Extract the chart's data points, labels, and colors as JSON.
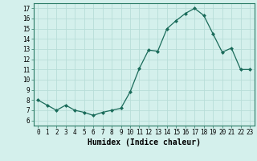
{
  "x": [
    0,
    1,
    2,
    3,
    4,
    5,
    6,
    7,
    8,
    9,
    10,
    11,
    12,
    13,
    14,
    15,
    16,
    17,
    18,
    19,
    20,
    21,
    22,
    23
  ],
  "y": [
    8.0,
    7.5,
    7.0,
    7.5,
    7.0,
    6.8,
    6.5,
    6.8,
    7.0,
    7.2,
    8.8,
    11.1,
    12.9,
    12.8,
    15.0,
    15.8,
    16.5,
    17.0,
    16.3,
    14.5,
    12.7,
    13.1,
    11.0,
    11.0
  ],
  "xlabel": "Humidex (Indice chaleur)",
  "xlim": [
    -0.5,
    23.5
  ],
  "ylim": [
    5.5,
    17.5
  ],
  "yticks": [
    6,
    7,
    8,
    9,
    10,
    11,
    12,
    13,
    14,
    15,
    16,
    17
  ],
  "xticks": [
    0,
    1,
    2,
    3,
    4,
    5,
    6,
    7,
    8,
    9,
    10,
    11,
    12,
    13,
    14,
    15,
    16,
    17,
    18,
    19,
    20,
    21,
    22,
    23
  ],
  "line_color": "#1a6b5a",
  "marker": "D",
  "marker_size": 2.0,
  "bg_color": "#d4f0ec",
  "grid_color": "#b8ddd8",
  "tick_label_fontsize": 5.5,
  "xlabel_fontsize": 7.0
}
